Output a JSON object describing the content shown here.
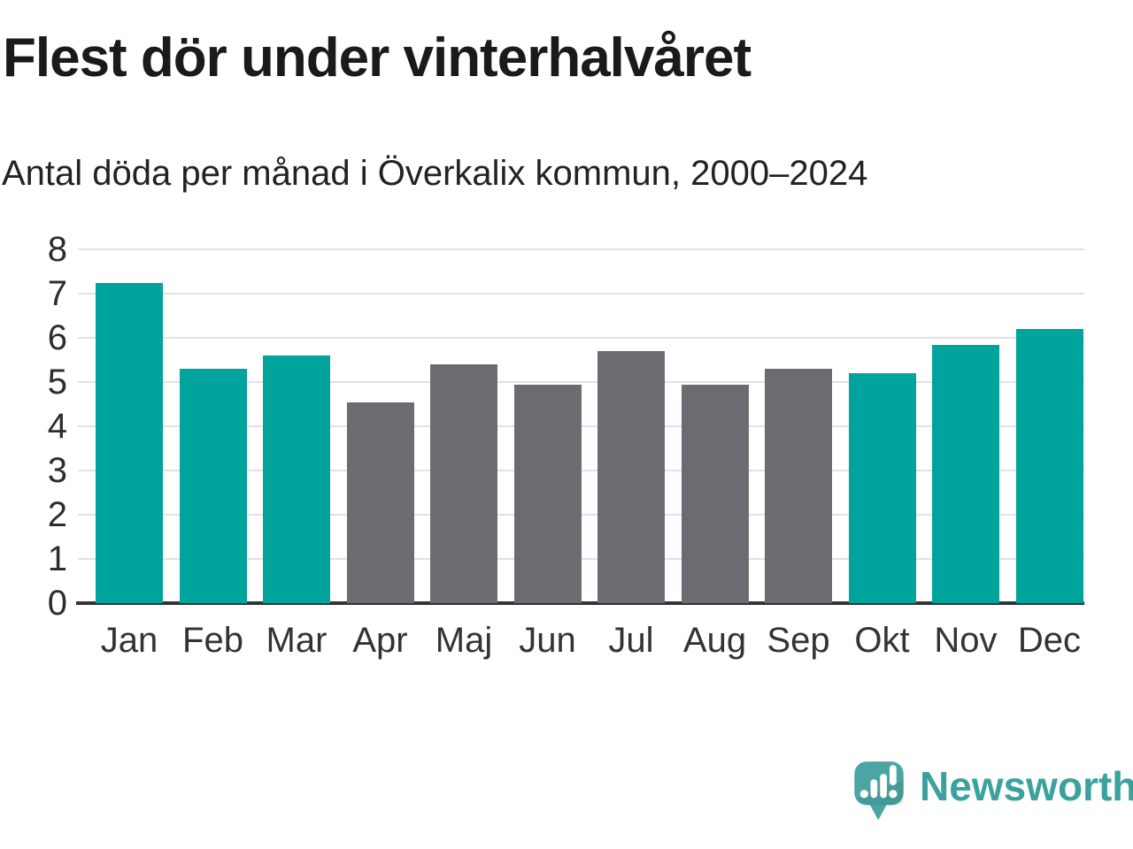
{
  "header": {
    "title": "Flest dör under vinterhalvåret",
    "subtitle": "Antal döda per månad i Överkalix kommun, 2000–2024"
  },
  "chart_data": {
    "type": "bar",
    "title": "Flest dör under vinterhalvåret",
    "subtitle": "Antal döda per månad i Överkalix kommun, 2000–2024",
    "categories": [
      "Jan",
      "Feb",
      "Mar",
      "Apr",
      "Maj",
      "Jun",
      "Jul",
      "Aug",
      "Sep",
      "Okt",
      "Nov",
      "Dec"
    ],
    "values": [
      7.25,
      5.3,
      5.6,
      4.55,
      5.4,
      4.95,
      5.7,
      4.95,
      5.3,
      5.2,
      5.85,
      6.2
    ],
    "highlighted": [
      true,
      true,
      true,
      false,
      false,
      false,
      false,
      false,
      false,
      true,
      true,
      true
    ],
    "bar_colors": [
      "#00a49c",
      "#00a49c",
      "#00a49c",
      "#6e6a72",
      "#6e6a72",
      "#6e6a72",
      "#6e6a72",
      "#6e6a72",
      "#6e6a72",
      "#00a49c",
      "#00a49c",
      "#00a49c"
    ],
    "xlabel": "",
    "ylabel": "",
    "ylim": [
      0,
      8
    ],
    "yticks": [
      0,
      1,
      2,
      3,
      4,
      5,
      6,
      7,
      8
    ],
    "grid": "horizontal",
    "legend": "none"
  },
  "colors": {
    "highlight": "#00a49c",
    "default": "#6e6a72",
    "grid": "#e2e2e2",
    "axis": "#333333",
    "title": "#1a1a1a",
    "subtitle": "#222222",
    "tick": "#2d2d2d",
    "brand": "#3aa29d",
    "brand_bubble": "#4ba5a2"
  },
  "branding": {
    "logo_text": "Newsworthy",
    "logo_icon": "newsworthy-speech-bubble-bar-chart-icon"
  }
}
